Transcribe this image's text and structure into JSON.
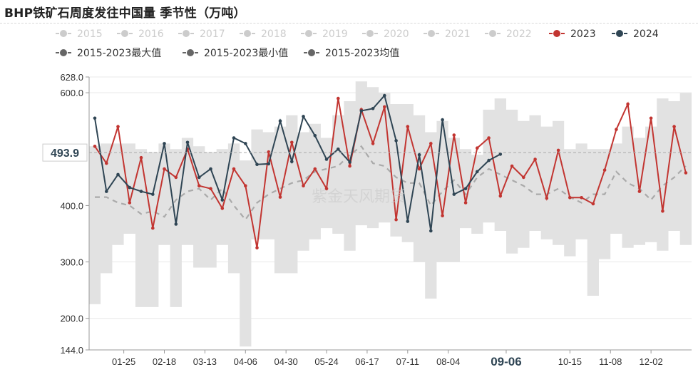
{
  "title": "BHP铁矿石周度发往中国量 季节性（万吨）",
  "colors": {
    "legend_inactive": "#cccccc",
    "y2023": "#c23531",
    "y2024": "#2f4554",
    "range_band": "#e2e2e2",
    "avg": "#aaaaaa",
    "axis_text": "#333333"
  },
  "tooltip": {
    "y_value": "493.9",
    "x_value": "09-06"
  },
  "chart_data": {
    "type": "line",
    "title": "BHP铁矿石周度发往中国量 季节性（万吨）",
    "xlabel": "",
    "ylabel": "",
    "ylim": [
      144.0,
      628.0
    ],
    "y_ticks": [
      {
        "label": "628.0",
        "v": 628
      },
      {
        "label": "600.0",
        "v": 600
      },
      {
        "label": "400.0",
        "v": 400
      },
      {
        "label": "300.0",
        "v": 300
      },
      {
        "label": "200.0",
        "v": 200
      },
      {
        "label": "144.0",
        "v": 144
      }
    ],
    "grid": true,
    "x_tick_labels": [
      {
        "label": "01-25",
        "i": 2.5
      },
      {
        "label": "02-18",
        "i": 6
      },
      {
        "label": "03-13",
        "i": 9.5
      },
      {
        "label": "04-06",
        "i": 13
      },
      {
        "label": "04-30",
        "i": 16.5
      },
      {
        "label": "05-24",
        "i": 20
      },
      {
        "label": "06-17",
        "i": 23.5
      },
      {
        "label": "07-11",
        "i": 27
      },
      {
        "label": "08-04",
        "i": 30.5
      },
      {
        "label": "09-06",
        "i": 35.5
      },
      {
        "label": "10-15",
        "i": 41
      },
      {
        "label": "11-08",
        "i": 44.5
      },
      {
        "label": "12-02",
        "i": 48
      }
    ],
    "legend": [
      {
        "name": "2015",
        "active": false
      },
      {
        "name": "2016",
        "active": false
      },
      {
        "name": "2017",
        "active": false
      },
      {
        "name": "2018",
        "active": false
      },
      {
        "name": "2019",
        "active": false
      },
      {
        "name": "2020",
        "active": false
      },
      {
        "name": "2021",
        "active": false
      },
      {
        "name": "2022",
        "active": false
      },
      {
        "name": "2023",
        "active": true
      },
      {
        "name": "2024",
        "active": true
      },
      {
        "name": "2015-2023最大值",
        "active": true
      },
      {
        "name": "2015-2023最小值",
        "active": true
      },
      {
        "name": "2015-2023均值",
        "active": true
      }
    ],
    "series": [
      {
        "name": "2023",
        "values": [
          505,
          475,
          540,
          405,
          485,
          360,
          465,
          450,
          500,
          435,
          430,
          395,
          465,
          435,
          325,
          495,
          415,
          512,
          435,
          465,
          430,
          590,
          470,
          570,
          510,
          575,
          375,
          540,
          465,
          510,
          382,
          525,
          405,
          502,
          520,
          417,
          470,
          450,
          482,
          413,
          498,
          414,
          414,
          403,
          463,
          535,
          580,
          425,
          555,
          390,
          540,
          458
        ]
      },
      {
        "name": "2024",
        "values": [
          555,
          425,
          455,
          432,
          425,
          420,
          510,
          367,
          512,
          450,
          465,
          410,
          520,
          510,
          473,
          474,
          550,
          478,
          558,
          524,
          482,
          500,
          477,
          568,
          572,
          595,
          515,
          372,
          490,
          355,
          552,
          420,
          430,
          460,
          480,
          491
        ]
      },
      {
        "name": "2015-2023最大值",
        "values": [
          505,
          510,
          510,
          510,
          500,
          495,
          510,
          500,
          520,
          505,
          495,
          500,
          510,
          480,
          535,
          530,
          540,
          560,
          530,
          545,
          520,
          560,
          585,
          620,
          610,
          600,
          580,
          580,
          560,
          530,
          550,
          520,
          500,
          490,
          570,
          590,
          570,
          550,
          560,
          540,
          550,
          500,
          510,
          500,
          500,
          510,
          540,
          520,
          540,
          590,
          585,
          600
        ]
      },
      {
        "name": "2015-2023最小值",
        "values": [
          225,
          280,
          330,
          350,
          220,
          220,
          330,
          220,
          330,
          290,
          290,
          330,
          280,
          150,
          340,
          340,
          280,
          280,
          320,
          340,
          360,
          350,
          320,
          365,
          360,
          370,
          345,
          335,
          300,
          235,
          300,
          300,
          360,
          350,
          370,
          355,
          315,
          325,
          355,
          340,
          330,
          310,
          340,
          240,
          305,
          350,
          325,
          330,
          335,
          320,
          355,
          330
        ]
      },
      {
        "name": "2015-2023均值",
        "values": [
          415,
          415,
          405,
          400,
          385,
          390,
          380,
          410,
          425,
          430,
          410,
          430,
          400,
          375,
          405,
          420,
          430,
          440,
          445,
          460,
          465,
          470,
          490,
          505,
          475,
          470,
          450,
          440,
          440,
          400,
          425,
          445,
          420,
          450,
          465,
          455,
          445,
          435,
          420,
          420,
          430,
          415,
          405,
          420,
          420,
          460,
          440,
          430,
          410,
          435,
          450,
          470
        ]
      }
    ]
  }
}
